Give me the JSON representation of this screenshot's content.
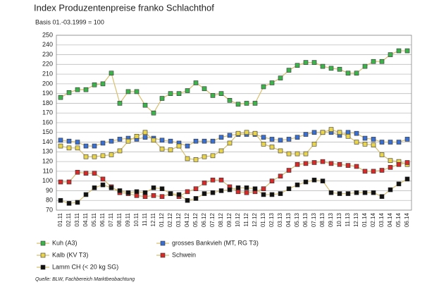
{
  "chart_data": {
    "type": "line",
    "title": "Index Produzentenpreise franko Schlachthof",
    "subtitle": "Basis 01.-03.1999 = 100",
    "source": "Quelle: BLW, Fachbereich Marktbeobachtung",
    "categories": [
      "01.11",
      "02.11",
      "03.11",
      "04.11",
      "05.11",
      "06.11",
      "07.11",
      "08.11",
      "09.11",
      "10.11",
      "11.11",
      "12.11",
      "01.12",
      "02.12",
      "03.12",
      "04.12",
      "05.12",
      "06.12",
      "07.12",
      "08.12",
      "09.12",
      "10.12",
      "11.12",
      "12.12",
      "01.13",
      "02.13",
      "03.13",
      "04.13",
      "05.13",
      "06.13",
      "07.13",
      "08.13",
      "09.13",
      "10.13",
      "11.13",
      "12.13",
      "01.14",
      "02.14",
      "03.14",
      "04.14",
      "05.14",
      "06.14"
    ],
    "series": [
      {
        "name": "Kuh (A3)",
        "color": "#3cb44b",
        "values": [
          186,
          191,
          194,
          194,
          199,
          200,
          211,
          180,
          192,
          192,
          178,
          170,
          185,
          190,
          190,
          193,
          201,
          195,
          188,
          190,
          183,
          179,
          180,
          180,
          197,
          201,
          206,
          214,
          219,
          222,
          222,
          218,
          216,
          215,
          211,
          211,
          218,
          223,
          223,
          230,
          234,
          234
        ]
      },
      {
        "name": "grosses Bankvieh (MT, RG T3)",
        "color": "#3a6fd0",
        "values": [
          142,
          141,
          140,
          136,
          136,
          139,
          141,
          143,
          144,
          143,
          145,
          144,
          142,
          141,
          139,
          136,
          141,
          141,
          141,
          145,
          147,
          148,
          148,
          148,
          145,
          143,
          142,
          143,
          145,
          148,
          150,
          150,
          150,
          147,
          150,
          149,
          144,
          143,
          140,
          140,
          140,
          143
        ]
      },
      {
        "name": "Kalb (KV T3)",
        "color": "#e8d44d",
        "values": [
          136,
          134,
          134,
          125,
          125,
          126,
          127,
          131,
          141,
          146,
          150,
          142,
          133,
          132,
          136,
          123,
          122,
          125,
          126,
          131,
          139,
          149,
          150,
          149,
          138,
          135,
          131,
          128,
          128,
          128,
          138,
          150,
          153,
          150,
          146,
          140,
          138,
          137,
          127,
          121,
          120,
          117
        ]
      },
      {
        "name": "Schwein",
        "color": "#d42a2a",
        "values": [
          99,
          99,
          109,
          108,
          108,
          102,
          94,
          88,
          87,
          85,
          84,
          85,
          84,
          87,
          84,
          89,
          92,
          98,
          101,
          101,
          94,
          89,
          88,
          89,
          92,
          100,
          105,
          111,
          117,
          118,
          119,
          120,
          118,
          117,
          116,
          115,
          110,
          110,
          111,
          114,
          117,
          119
        ]
      },
      {
        "name": "Lamm CH (< 20 kg SG)",
        "color": "#111111",
        "values": [
          80,
          77,
          78,
          86,
          93,
          96,
          93,
          90,
          88,
          89,
          88,
          93,
          92,
          87,
          86,
          80,
          82,
          87,
          88,
          90,
          91,
          93,
          93,
          92,
          86,
          86,
          87,
          92,
          96,
          99,
          101,
          100,
          88,
          87,
          87,
          88,
          88,
          88,
          84,
          91,
          97,
          102
        ]
      }
    ],
    "ylim": [
      70,
      250
    ],
    "yticks": [
      70,
      80,
      90,
      100,
      110,
      120,
      130,
      140,
      150,
      160,
      170,
      180,
      190,
      200,
      210,
      220,
      230,
      240,
      250
    ],
    "grid": true
  }
}
